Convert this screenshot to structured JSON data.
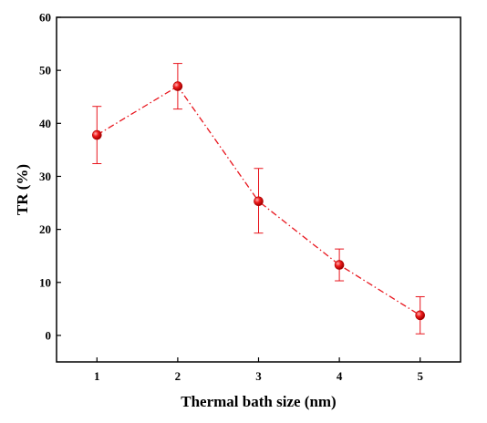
{
  "chart_data": {
    "type": "scatter",
    "title": "",
    "xlabel": "Thermal bath size (nm)",
    "ylabel": "TR (%)",
    "xlim": [
      0.5,
      5.5
    ],
    "ylim": [
      -5,
      60
    ],
    "xticks": [
      1,
      2,
      3,
      4,
      5
    ],
    "yticks": [
      0,
      10,
      20,
      30,
      40,
      50,
      60
    ],
    "grid": false,
    "legend": "none",
    "line_style": "dash-dot",
    "color": "#e8141c",
    "series": [
      {
        "x": [
          1,
          2,
          3,
          4,
          5
        ],
        "y": [
          37.8,
          47.0,
          25.3,
          13.3,
          3.8
        ],
        "err_upper": [
          43.2,
          51.3,
          31.5,
          16.3,
          7.3
        ],
        "err_lower": [
          32.4,
          42.7,
          19.3,
          10.3,
          0.3
        ]
      }
    ]
  }
}
